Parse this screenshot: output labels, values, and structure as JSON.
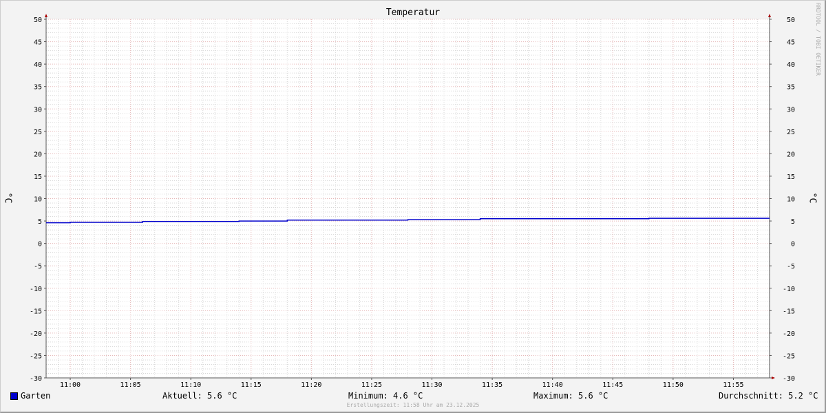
{
  "chart_data": {
    "type": "line",
    "title": "Temperatur",
    "ylabel": "°C",
    "ylim": [
      -30,
      50
    ],
    "yticks": [
      -30,
      -25,
      -20,
      -15,
      -10,
      -5,
      0,
      5,
      10,
      15,
      20,
      25,
      30,
      35,
      40,
      45,
      50
    ],
    "xlim": [
      "10:58",
      "11:58"
    ],
    "xticks": [
      "11:00",
      "11:05",
      "11:10",
      "11:15",
      "11:20",
      "11:25",
      "11:30",
      "11:35",
      "11:40",
      "11:45",
      "11:50",
      "11:55"
    ],
    "grid": true,
    "series": [
      {
        "name": "Garten",
        "color": "#0000cc",
        "step": true,
        "points": [
          [
            "10:58",
            4.6
          ],
          [
            "11:00",
            4.7
          ],
          [
            "11:06",
            4.9
          ],
          [
            "11:14",
            5.0
          ],
          [
            "11:18",
            5.2
          ],
          [
            "11:28",
            5.3
          ],
          [
            "11:34",
            5.5
          ],
          [
            "11:48",
            5.6
          ],
          [
            "11:58",
            5.6
          ]
        ]
      }
    ]
  },
  "legend": {
    "series_name": "Garten",
    "aktuell": "Aktuell: 5.6 °C",
    "minimum": "Minimum: 4.6 °C",
    "maximum": "Maximum: 5.6 °C",
    "durchschnitt": "Durchschnitt: 5.2 °C"
  },
  "watermark": "RRDTOOL / TOBI OETIKER",
  "footer": "Erstellungszeit: 11:58 Uhr am 23.12.2025"
}
